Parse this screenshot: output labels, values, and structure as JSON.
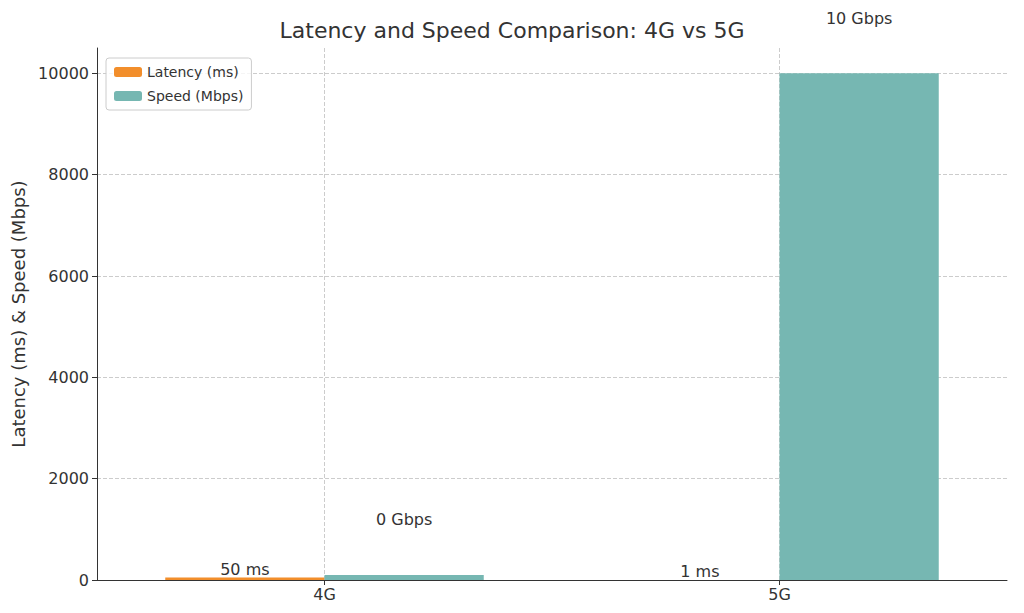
{
  "chart_data": {
    "type": "bar",
    "title": "Latency and Speed Comparison: 4G vs 5G",
    "y_label": "Latency (ms) & Speed (Mbps)",
    "categories": [
      "4G",
      "5G"
    ],
    "series": [
      {
        "name": "Latency (ms)",
        "color": "#f28e2b",
        "values": [
          50,
          1
        ],
        "value_labels": [
          "50 ms",
          "1 ms"
        ]
      },
      {
        "name": "Speed (Mbps)",
        "color": "#76b7b2",
        "values": [
          100,
          10000
        ],
        "value_labels": [
          "0 Gbps",
          "10 Gbps"
        ]
      }
    ],
    "ylim": [
      0,
      10500
    ],
    "yticks": [
      0,
      2000,
      4000,
      6000,
      8000,
      10000
    ],
    "grid": true,
    "legend": "upper left",
    "data_labels": true
  }
}
